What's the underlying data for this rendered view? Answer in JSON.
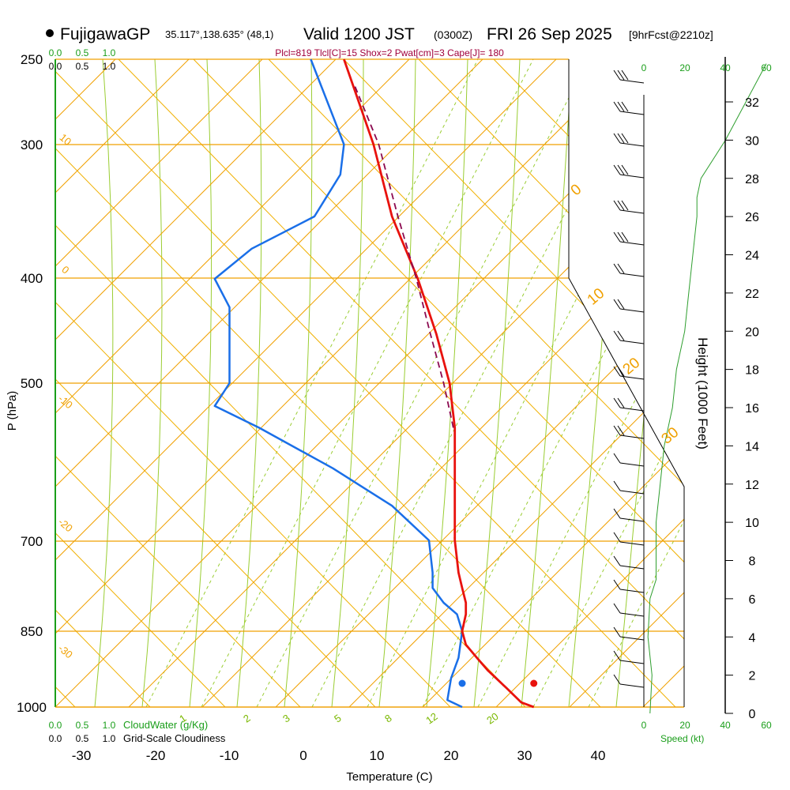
{
  "header": {
    "station": "FujigawaGP",
    "coords": "35.117°,138.635° (48,1)",
    "valid": "Valid 1200 JST",
    "utc": "(0300Z)",
    "date": "FRI 26 Sep 2025",
    "forecast": "[9hrFcst@2210z]",
    "indices": "Plcl=819 Tlcl[C]=15 Shox=2 Pwat[cm]=3 Cape[J]= 180"
  },
  "colors": {
    "temperature": "#e8120e",
    "dewpoint": "#1a6fe8",
    "parcel": "#8b0a50",
    "isotherm": "#f0a000",
    "dry_adiabat": "#f0b000",
    "moist_adiabat": "#9acd32",
    "mixing_ratio": "#9acd32",
    "green_text": "#1a9e1a",
    "indices": "#a0003c",
    "wind_profile": "#2e9e2e"
  },
  "chart_data": {
    "type": "skew-t",
    "title": "FujigawaGP Valid 1200 JST (0300Z) FRI 26 Sep 2025",
    "xlabel": "Temperature (C)",
    "ylabel": "P (hPa)",
    "right_axis_label": "Height (1000 Feet)",
    "x_ticks": [
      "-30",
      "-20",
      "-10",
      "0",
      "10",
      "20",
      "30",
      "40"
    ],
    "pressure_ticks": [
      "250",
      "300",
      "400",
      "500",
      "700",
      "850",
      "1000"
    ],
    "height_ticks": [
      "0",
      "2",
      "4",
      "6",
      "8",
      "10",
      "12",
      "14",
      "16",
      "18",
      "20",
      "22",
      "24",
      "26",
      "28",
      "30",
      "32"
    ],
    "isotherm_labels": [
      "10",
      "0",
      "-10",
      "-20",
      "-30"
    ],
    "isotherm_labels_right": [
      "0",
      "10",
      "20",
      "30"
    ],
    "mixing_ratio_labels": [
      "1",
      "2",
      "3",
      "5",
      "8",
      "12",
      "20"
    ],
    "temperature_profile": [
      {
        "p": 1000,
        "t": 31.2
      },
      {
        "p": 990,
        "t": 29.5
      },
      {
        "p": 960,
        "t": 27.5
      },
      {
        "p": 925,
        "t": 25.0
      },
      {
        "p": 900,
        "t": 23.5
      },
      {
        "p": 875,
        "t": 22.0
      },
      {
        "p": 850,
        "t": 21.5
      },
      {
        "p": 820,
        "t": 22.0
      },
      {
        "p": 800,
        "t": 22.0
      },
      {
        "p": 775,
        "t": 21.5
      },
      {
        "p": 750,
        "t": 21.0
      },
      {
        "p": 700,
        "t": 20.5
      },
      {
        "p": 650,
        "t": 20.5
      },
      {
        "p": 600,
        "t": 20.5
      },
      {
        "p": 550,
        "t": 20.5
      },
      {
        "p": 500,
        "t": 19.8
      },
      {
        "p": 450,
        "t": 18.0
      },
      {
        "p": 400,
        "t": 15.5
      },
      {
        "p": 350,
        "t": 12.0
      },
      {
        "p": 300,
        "t": 9.5
      },
      {
        "p": 250,
        "t": 5.5
      }
    ],
    "dewpoint_profile": [
      {
        "p": 1000,
        "t": 21.5
      },
      {
        "p": 985,
        "t": 19.5
      },
      {
        "p": 940,
        "t": 20.0
      },
      {
        "p": 900,
        "t": 21.0
      },
      {
        "p": 850,
        "t": 21.5
      },
      {
        "p": 820,
        "t": 20.8
      },
      {
        "p": 800,
        "t": 19.0
      },
      {
        "p": 775,
        "t": 17.5
      },
      {
        "p": 750,
        "t": 17.5
      },
      {
        "p": 700,
        "t": 17.0
      },
      {
        "p": 650,
        "t": 12.0
      },
      {
        "p": 600,
        "t": 4.0
      },
      {
        "p": 550,
        "t": -6.0
      },
      {
        "p": 525,
        "t": -12.0
      },
      {
        "p": 500,
        "t": -10.0
      },
      {
        "p": 450,
        "t": -10.0
      },
      {
        "p": 425,
        "t": -10.0
      },
      {
        "p": 400,
        "t": -12.0
      },
      {
        "p": 375,
        "t": -7.0
      },
      {
        "p": 350,
        "t": 1.5
      },
      {
        "p": 320,
        "t": 5.0
      },
      {
        "p": 300,
        "t": 5.5
      },
      {
        "p": 250,
        "t": 1.0
      }
    ],
    "parcel_profile": [
      {
        "p": 550,
        "t": 20.3
      },
      {
        "p": 500,
        "t": 19.0
      },
      {
        "p": 450,
        "t": 17.2
      },
      {
        "p": 400,
        "t": 15.3
      },
      {
        "p": 350,
        "t": 12.8
      },
      {
        "p": 300,
        "t": 10.2
      },
      {
        "p": 265,
        "t": 7.0
      }
    ],
    "surface_points": {
      "temperature": 31.2,
      "dewpoint": 21.5
    },
    "wind_speed_profile_kt": [
      {
        "h": 0,
        "v": 3
      },
      {
        "h": 2,
        "v": 4
      },
      {
        "h": 4,
        "v": 2
      },
      {
        "h": 6,
        "v": 3
      },
      {
        "h": 7,
        "v": 6
      },
      {
        "h": 8,
        "v": 6
      },
      {
        "h": 9,
        "v": 6
      },
      {
        "h": 10,
        "v": 6
      },
      {
        "h": 12,
        "v": 8
      },
      {
        "h": 14,
        "v": 10
      },
      {
        "h": 16,
        "v": 14
      },
      {
        "h": 18,
        "v": 16
      },
      {
        "h": 20,
        "v": 20
      },
      {
        "h": 22,
        "v": 22
      },
      {
        "h": 24,
        "v": 24
      },
      {
        "h": 26,
        "v": 26
      },
      {
        "h": 27,
        "v": 26
      },
      {
        "h": 28,
        "v": 28
      },
      {
        "h": 30,
        "v": 40
      },
      {
        "h": 32,
        "v": 50
      },
      {
        "h": 34,
        "v": 60
      }
    ],
    "wind_axis_ticks": [
      "0",
      "20",
      "40",
      "60"
    ],
    "wind_axis_label": "Speed (kt)",
    "cloud_water_ticks": [
      "0.0",
      "0.5",
      "1.0"
    ],
    "cloud_water_label": "CloudWater (g/Kg)",
    "cloudiness_ticks": [
      "0.0",
      "0.5",
      "1.0"
    ],
    "cloudiness_label": "Grid-Scale Cloudiness"
  }
}
